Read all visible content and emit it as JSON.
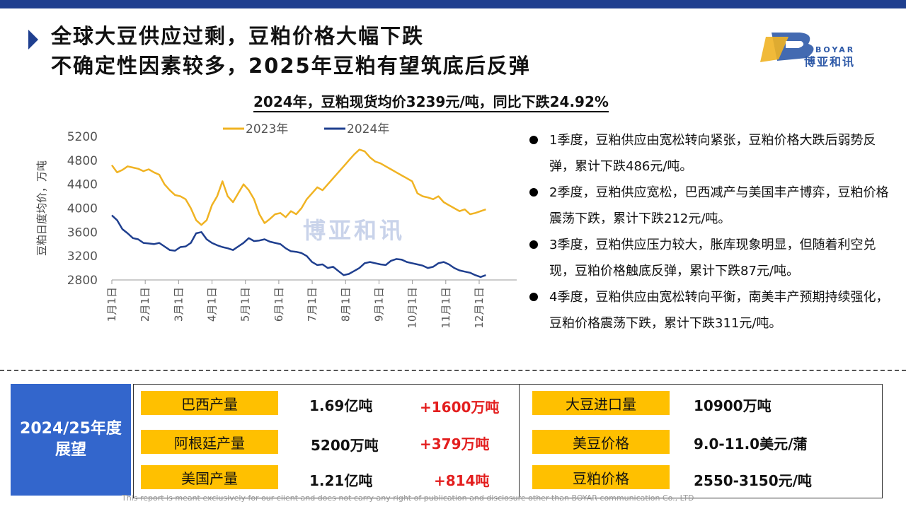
{
  "header": {
    "title_line1": "全球大豆供应过剩，豆粕价格大幅下跌",
    "title_line2": "不确定性因素较多，2025年豆粕有望筑底后反弹",
    "logo_en": "BOYAR",
    "logo_cn": "博亚和讯"
  },
  "subtitle": "2024年，豆粕现货均价3239元/吨，同比下跌24.92%",
  "colors": {
    "accent": "#1f3f8f",
    "series2023": "#f0b323",
    "series2024": "#1f3f8f",
    "tag": "#ffc000",
    "up": "#e31e1e",
    "panel": "#3366cc"
  },
  "chart_data": {
    "type": "line",
    "ylabel": "豆粕日度均价，万吨",
    "ylim": [
      2800,
      5200
    ],
    "yticks": [
      2800,
      3200,
      3600,
      4000,
      4400,
      4800,
      5200
    ],
    "x_ticks": [
      "1月1日",
      "2月1日",
      "3月1日",
      "4月1日",
      "5月1日",
      "6月1日",
      "7月1日",
      "8月1日",
      "9月1日",
      "10月1日",
      "11月1日",
      "12月1日"
    ],
    "legend": "top",
    "watermark": "博亚和讯",
    "series": [
      {
        "name": "2023年",
        "values": [
          4720,
          4600,
          4640,
          4700,
          4680,
          4660,
          4620,
          4650,
          4600,
          4560,
          4400,
          4300,
          4220,
          4200,
          4150,
          4000,
          3800,
          3720,
          3800,
          4050,
          4200,
          4450,
          4200,
          4100,
          4250,
          4400,
          4300,
          4150,
          3900,
          3750,
          3820,
          3900,
          3920,
          3850,
          3950,
          3900,
          4000,
          4150,
          4250,
          4350,
          4300,
          4400,
          4500,
          4600,
          4700,
          4800,
          4900,
          4980,
          4950,
          4850,
          4780,
          4750,
          4700,
          4650,
          4600,
          4550,
          4500,
          4450,
          4250,
          4200,
          4180,
          4150,
          4200,
          4100,
          4050,
          4000,
          3950,
          3980,
          3900,
          3920,
          3950,
          3980
        ]
      },
      {
        "name": "2024年",
        "values": [
          3880,
          3800,
          3650,
          3580,
          3500,
          3480,
          3420,
          3410,
          3400,
          3420,
          3360,
          3300,
          3290,
          3350,
          3360,
          3420,
          3580,
          3600,
          3480,
          3420,
          3380,
          3350,
          3330,
          3300,
          3360,
          3420,
          3500,
          3450,
          3460,
          3480,
          3440,
          3420,
          3400,
          3330,
          3280,
          3270,
          3250,
          3200,
          3100,
          3050,
          3060,
          3000,
          3020,
          2950,
          2880,
          2900,
          2950,
          3000,
          3080,
          3100,
          3080,
          3060,
          3050,
          3120,
          3150,
          3140,
          3100,
          3080,
          3060,
          3040,
          3000,
          3020,
          3080,
          3100,
          3060,
          3000,
          2960,
          2940,
          2920,
          2880,
          2850,
          2880
        ]
      }
    ]
  },
  "bullets": [
    "1季度，豆粕供应由宽松转向紧张，豆粕价格大跌后弱势反弹，累计下跌486元/吨。",
    "2季度，豆粕供应宽松，巴西减产与美国丰产博弈，豆粕价格震荡下跌，累计下跌212元/吨。",
    "3季度，豆粕供应压力较大，胀库现象明显，但随着利空兑现，豆粕价格触底反弹，累计下跌87元/吨。",
    "4季度，豆粕供应由宽松转向平衡，南美丰产预期持续强化，豆粕价格震荡下跌，累计下跌311元/吨。"
  ],
  "outlook": {
    "panel_title_line1": "2024/25年度",
    "panel_title_line2": "展望",
    "left": [
      {
        "label": "巴西产量",
        "value": "1.69亿吨",
        "change": "+1600万吨"
      },
      {
        "label": "阿根廷产量",
        "value": "5200万吨",
        "change": "+379万吨"
      },
      {
        "label": "美国产量",
        "value": "1.21亿吨",
        "change": "+814吨"
      }
    ],
    "right": [
      {
        "label": "大豆进口量",
        "value": "10900万吨"
      },
      {
        "label": "美豆价格",
        "value": "9.0-11.0美元/蒲"
      },
      {
        "label": "豆粕价格",
        "value": "2550-3150元/吨"
      }
    ]
  },
  "footer": "This report is meant exclusively for our client and does not carry any right of publication and disclosure other than BOYAR communication Co., LTD"
}
